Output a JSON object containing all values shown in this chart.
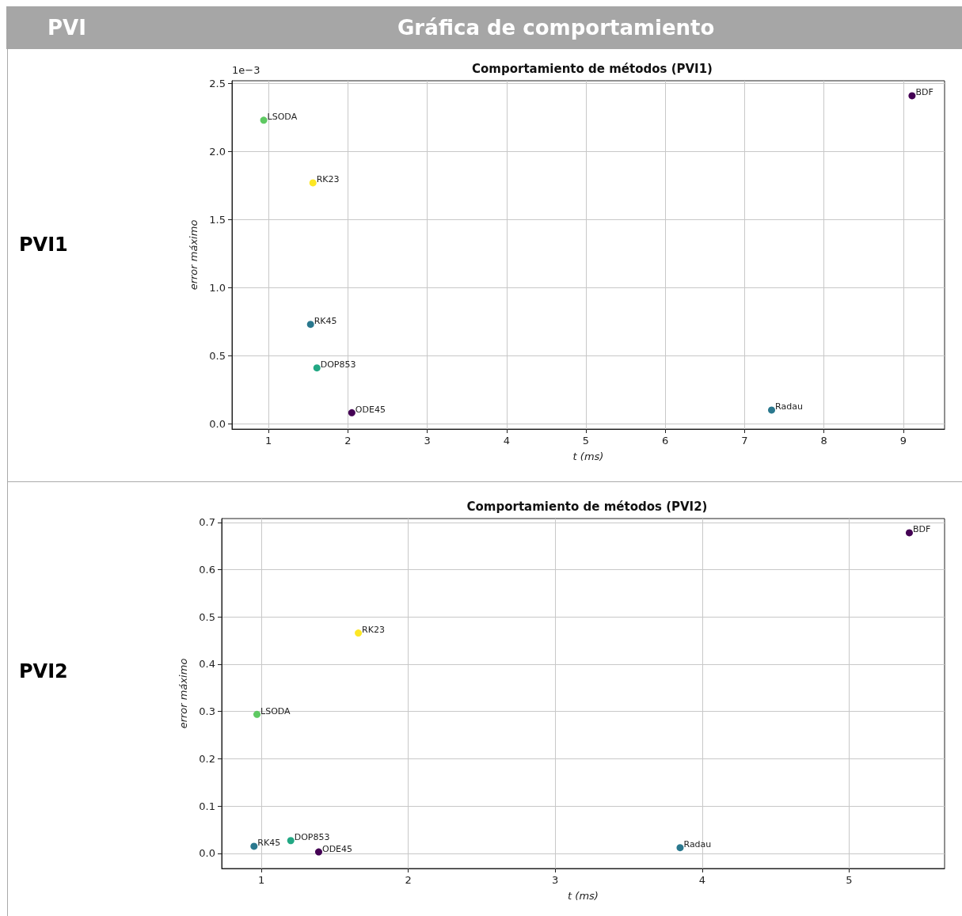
{
  "chart_data": [
    {
      "type": "scatter",
      "title": "Comportamiento de métodos (PVI1)",
      "xlabel": "t (ms)",
      "ylabel": "error máximo",
      "annotations": [
        "PVI",
        "Gráfica de comportamiento",
        "PVI1",
        "1e−3"
      ],
      "xlim": [
        0.54,
        9.52
      ],
      "ylim": [
        -0.04,
        2.52
      ],
      "xticks": [
        1,
        2,
        3,
        4,
        5,
        6,
        7,
        8,
        9
      ],
      "yticks": [
        {
          "value": 0,
          "label": "0.0"
        },
        {
          "value": 0.5,
          "label": "0.5"
        },
        {
          "value": 1,
          "label": "1.0"
        },
        {
          "value": 1.5,
          "label": "1.5"
        },
        {
          "value": 2,
          "label": "2.0"
        },
        {
          "value": 2.5,
          "label": "2.5"
        }
      ],
      "grid": true,
      "marker": "circle",
      "legend": false,
      "series": [
        {
          "name": "LSODA",
          "color": "#5ec962",
          "x": [
            0.94
          ],
          "values": [
            2.23
          ]
        },
        {
          "name": "RK23",
          "color": "#fde725",
          "x": [
            1.56
          ],
          "values": [
            1.77
          ]
        },
        {
          "name": "RK45",
          "color": "#2a788e",
          "x": [
            1.53
          ],
          "values": [
            0.73
          ]
        },
        {
          "name": "DOP853",
          "color": "#22a884",
          "x": [
            1.61
          ],
          "values": [
            0.41
          ]
        },
        {
          "name": "ODE45",
          "color": "#440154",
          "x": [
            2.05
          ],
          "values": [
            0.08
          ]
        },
        {
          "name": "Radau",
          "color": "#2a788e",
          "x": [
            7.34
          ],
          "values": [
            0.1
          ]
        },
        {
          "name": "BDF",
          "color": "#440154",
          "x": [
            9.11
          ],
          "values": [
            2.41
          ]
        }
      ]
    },
    {
      "type": "scatter",
      "title": "Comportamiento de métodos (PVI2)",
      "xlabel": "t (ms)",
      "ylabel": "error máximo",
      "annotations": [
        "PVI2"
      ],
      "xlim": [
        0.73,
        5.65
      ],
      "ylim": [
        -0.032,
        0.708
      ],
      "xticks": [
        1,
        2,
        3,
        4,
        5
      ],
      "yticks": [
        {
          "value": 0,
          "label": "0.0"
        },
        {
          "value": 0.1,
          "label": "0.1"
        },
        {
          "value": 0.2,
          "label": "0.2"
        },
        {
          "value": 0.3,
          "label": "0.3"
        },
        {
          "value": 0.4,
          "label": "0.4"
        },
        {
          "value": 0.5,
          "label": "0.5"
        },
        {
          "value": 0.6,
          "label": "0.6"
        },
        {
          "value": 0.7,
          "label": "0.7"
        }
      ],
      "grid": true,
      "marker": "circle",
      "legend": false,
      "series": [
        {
          "name": "LSODA",
          "color": "#5ec962",
          "x": [
            0.97
          ],
          "values": [
            0.294
          ]
        },
        {
          "name": "RK23",
          "color": "#fde725",
          "x": [
            1.66
          ],
          "values": [
            0.466
          ]
        },
        {
          "name": "RK45",
          "color": "#2a788e",
          "x": [
            0.95
          ],
          "values": [
            0.015
          ]
        },
        {
          "name": "DOP853",
          "color": "#22a884",
          "x": [
            1.2
          ],
          "values": [
            0.027
          ]
        },
        {
          "name": "ODE45",
          "color": "#440154",
          "x": [
            1.39
          ],
          "values": [
            0.003
          ]
        },
        {
          "name": "Radau",
          "color": "#2a788e",
          "x": [
            3.85
          ],
          "values": [
            0.012
          ]
        },
        {
          "name": "BDF",
          "color": "#440154",
          "x": [
            5.41
          ],
          "values": [
            0.678
          ]
        }
      ]
    }
  ]
}
